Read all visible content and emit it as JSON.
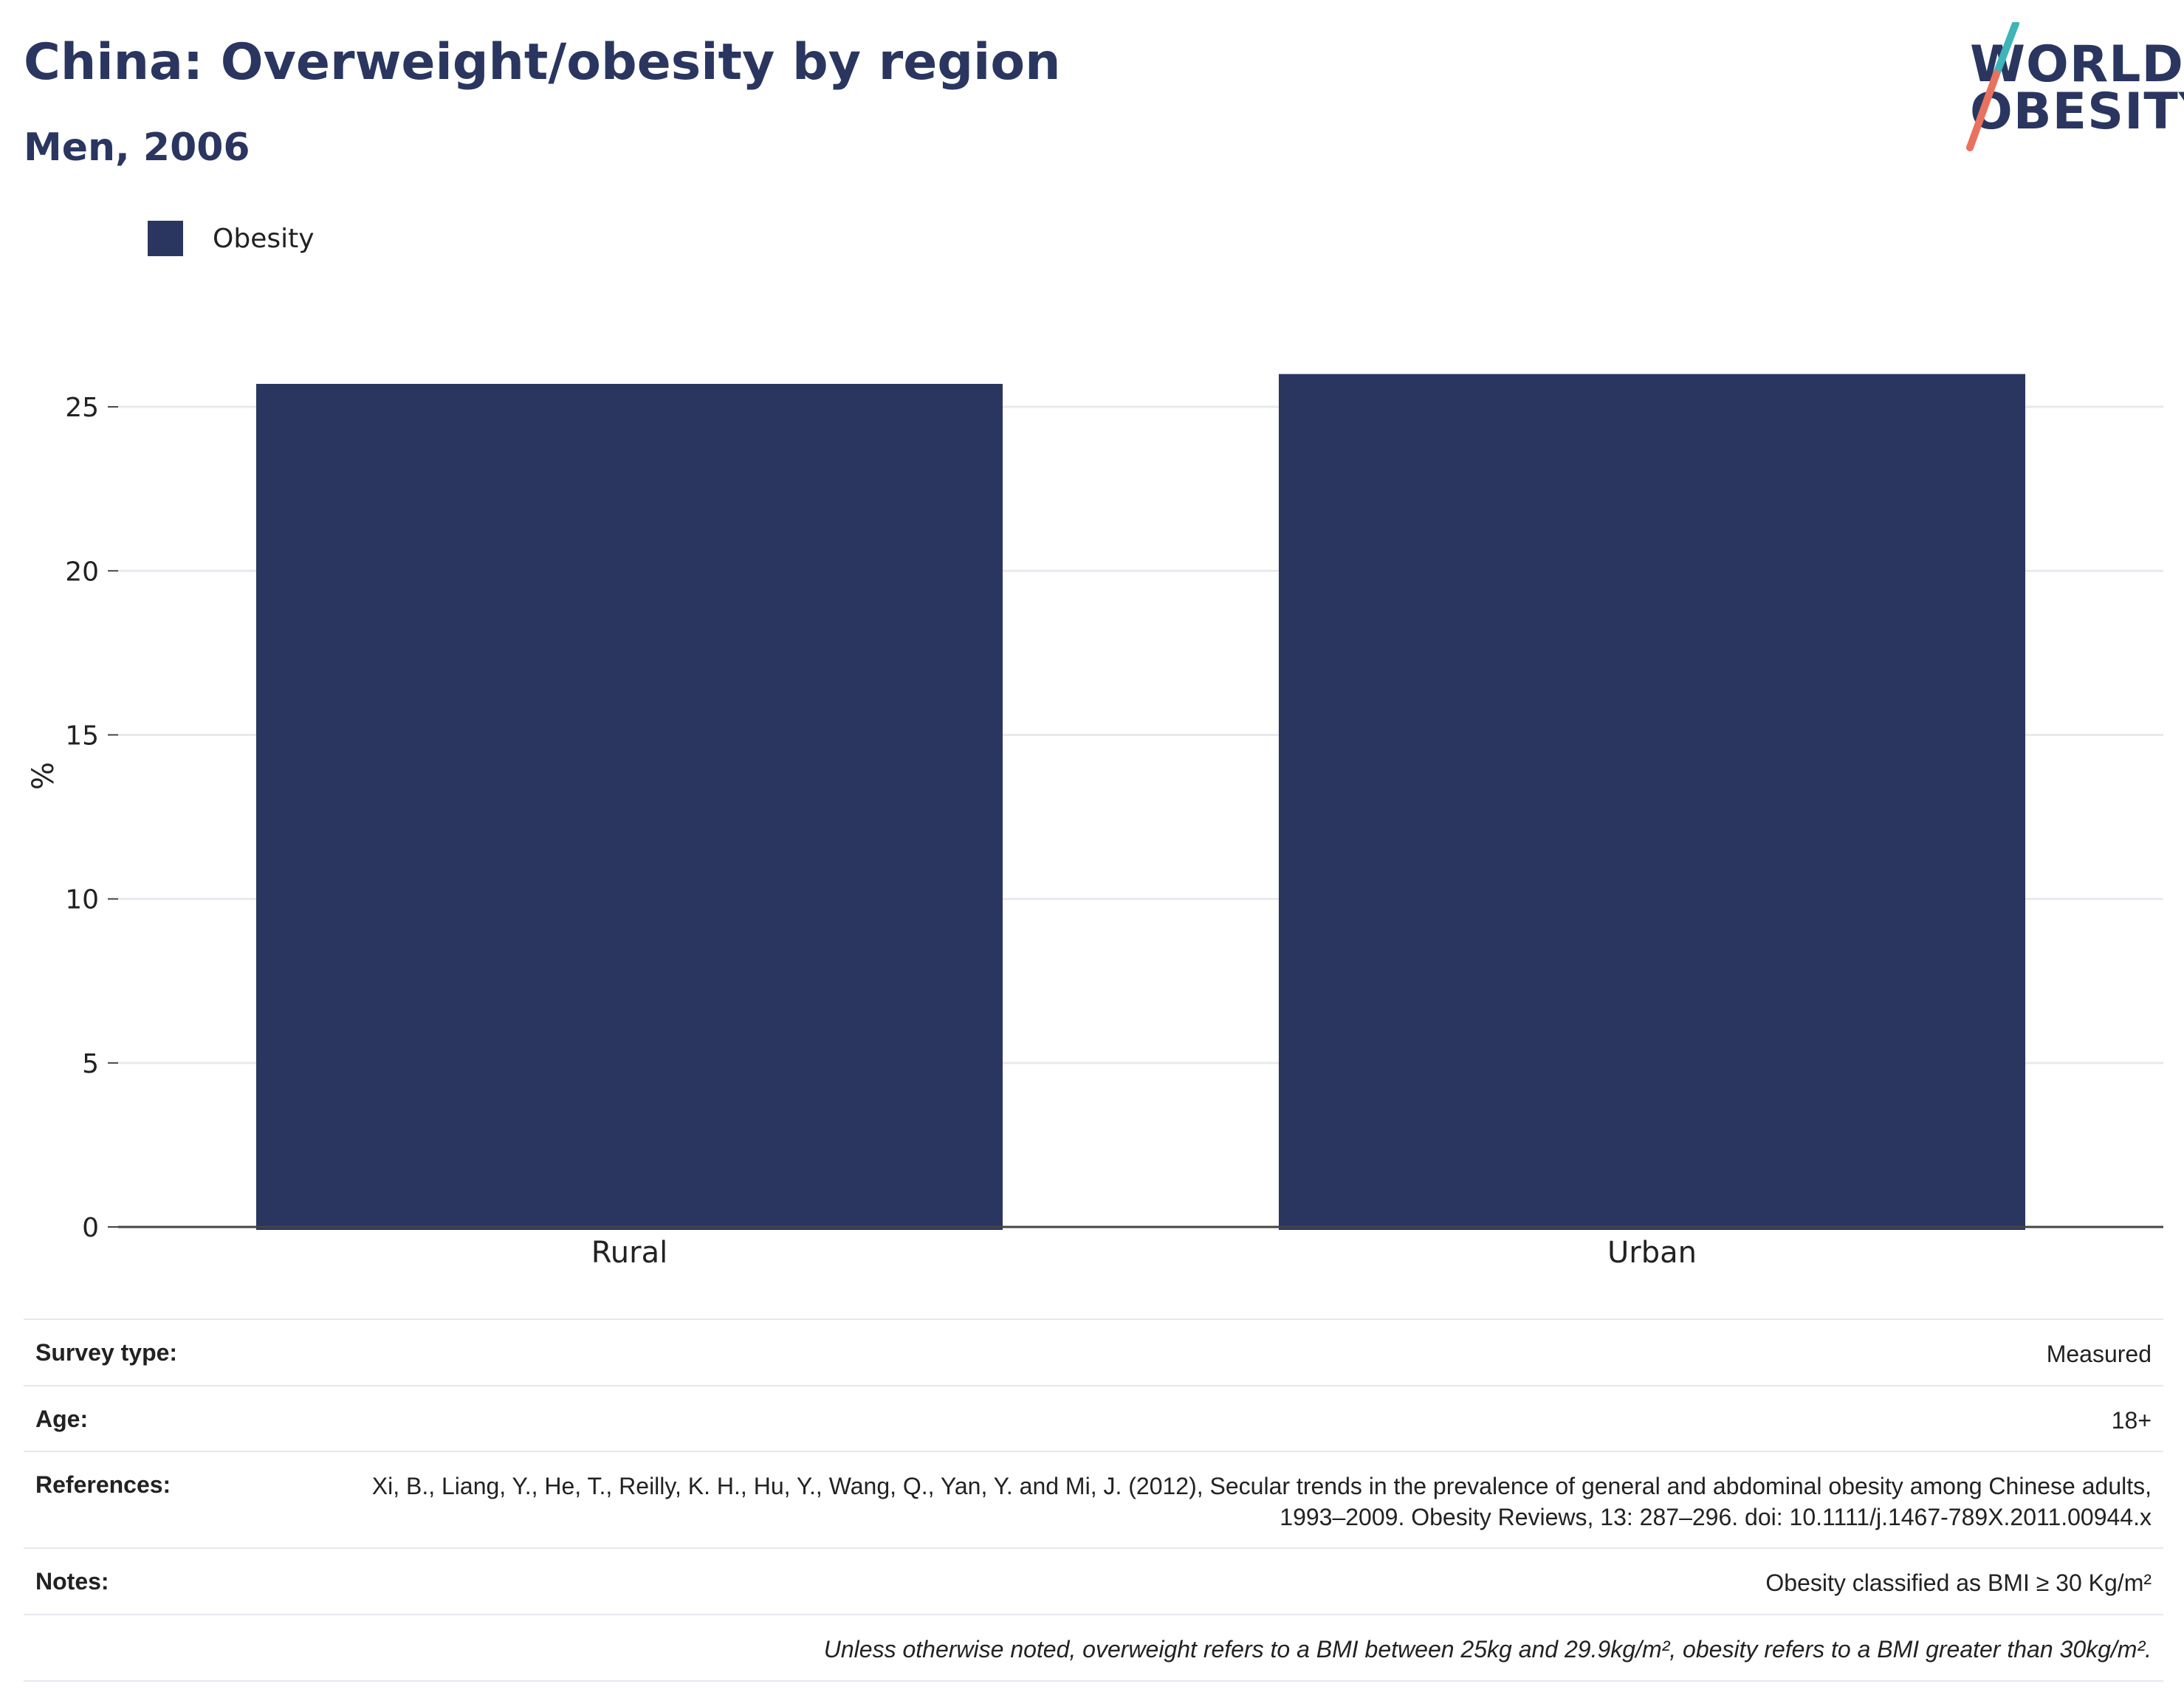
{
  "header": {
    "title": "China: Overweight/obesity by region",
    "subtitle": "Men, 2006"
  },
  "logo": {
    "line1": "WORLD",
    "line2": "OBESITY",
    "slash_color_top": "#3db5b9",
    "slash_color_bottom": "#e8725f"
  },
  "colors": {
    "bar": "#2a365f",
    "grid": "#e8e9ee",
    "axis": "#444444"
  },
  "chart_data": {
    "type": "bar",
    "categories": [
      "Rural",
      "Urban"
    ],
    "series": [
      {
        "name": "Obesity",
        "values": [
          25.7,
          26.0
        ]
      }
    ],
    "ylabel": "%",
    "xlabel": "",
    "ylim": [
      0,
      27.5
    ],
    "yticks": [
      0,
      5,
      10,
      15,
      20,
      25
    ],
    "grid": true,
    "legend_position": "top-left"
  },
  "meta": {
    "rows": [
      {
        "label": "Survey type:",
        "value": "Measured"
      },
      {
        "label": "Age:",
        "value": "18+"
      },
      {
        "label": "References:",
        "value": "Xi, B., Liang, Y., He, T., Reilly, K. H., Hu, Y., Wang, Q., Yan, Y. and Mi, J. (2012), Secular trends in the prevalence of general and abdominal obesity among Chinese adults, 1993–2009. Obesity Reviews, 13: 287–296. doi: 10.1111/j.1467-789X.2011.00944.x"
      },
      {
        "label": "Notes:",
        "value": "Obesity classified as BMI ≥ 30 Kg/m²"
      }
    ],
    "footnote": "Unless otherwise noted, overweight refers to a BMI between 25kg and 29.9kg/m², obesity refers to a BMI greater than 30kg/m²."
  }
}
